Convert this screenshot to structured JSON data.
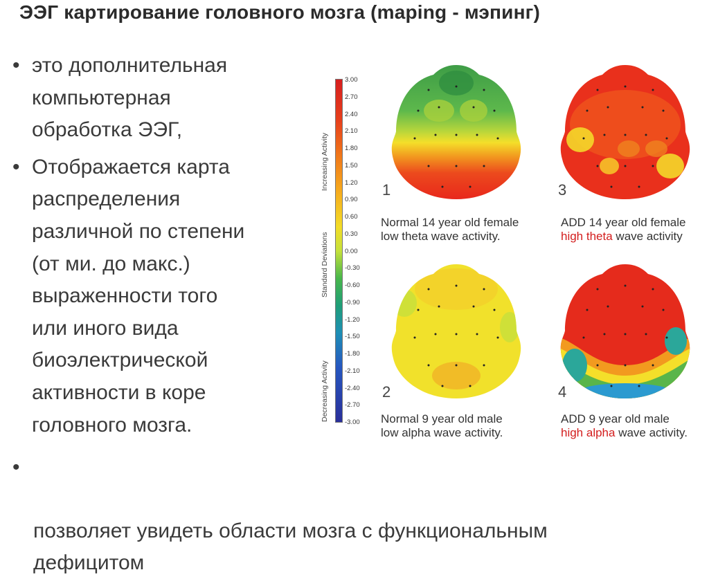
{
  "slide": {
    "title": "ЭЭГ картирование головного мозга (maping - мэпинг)",
    "bullets": [
      "это дополнительная\nкомпьютерная\nобработка ЭЭГ,",
      "Отображается карта\nраспределения\nразличной по степени\n(от ми. до макс.)\nвыраженности того\nили иного вида\nбиоэлектрической\nактивности в коре\nголовного мозга."
    ],
    "bottom_bullet": "позволяет увидеть области мозга с функциональным\nдефицитом",
    "bullet_glyph": "•"
  },
  "figure": {
    "scale_titles": {
      "top": "Increasing Activity",
      "middle": "Standard Deviations",
      "bottom": "Decreasing Activity"
    },
    "scale_ticks": [
      "3.00",
      "2.70",
      "2.40",
      "2.10",
      "1.80",
      "1.50",
      "1.20",
      "0.90",
      "0.60",
      "0.30",
      "0.00",
      "-0.30",
      "-0.60",
      "-0.90",
      "-1.20",
      "-1.50",
      "-1.80",
      "-2.10",
      "-2.40",
      "-2.70",
      "-3.00"
    ],
    "panels": [
      {
        "number": "1",
        "caption_line1": "Normal 14 year old female",
        "caption_line2_red": "",
        "caption_line2_rest": "low theta wave activity."
      },
      {
        "number": "3",
        "caption_line1": "ADD 14 year old female",
        "caption_line2_red": "high theta",
        "caption_line2_rest": " wave activity"
      },
      {
        "number": "2",
        "caption_line1": "Normal 9 year old male",
        "caption_line2_red": "",
        "caption_line2_rest": "low alpha wave activity."
      },
      {
        "number": "4",
        "caption_line1": "ADD 9 year old male",
        "caption_line2_red": "high alpha",
        "caption_line2_rest": " wave activity."
      }
    ],
    "colors": {
      "red": "#e8261c",
      "orange": "#f2731a",
      "yellow": "#f4e02a",
      "green": "#4aa84a",
      "teal": "#2aa79a",
      "blue": "#2b8fd0"
    }
  }
}
